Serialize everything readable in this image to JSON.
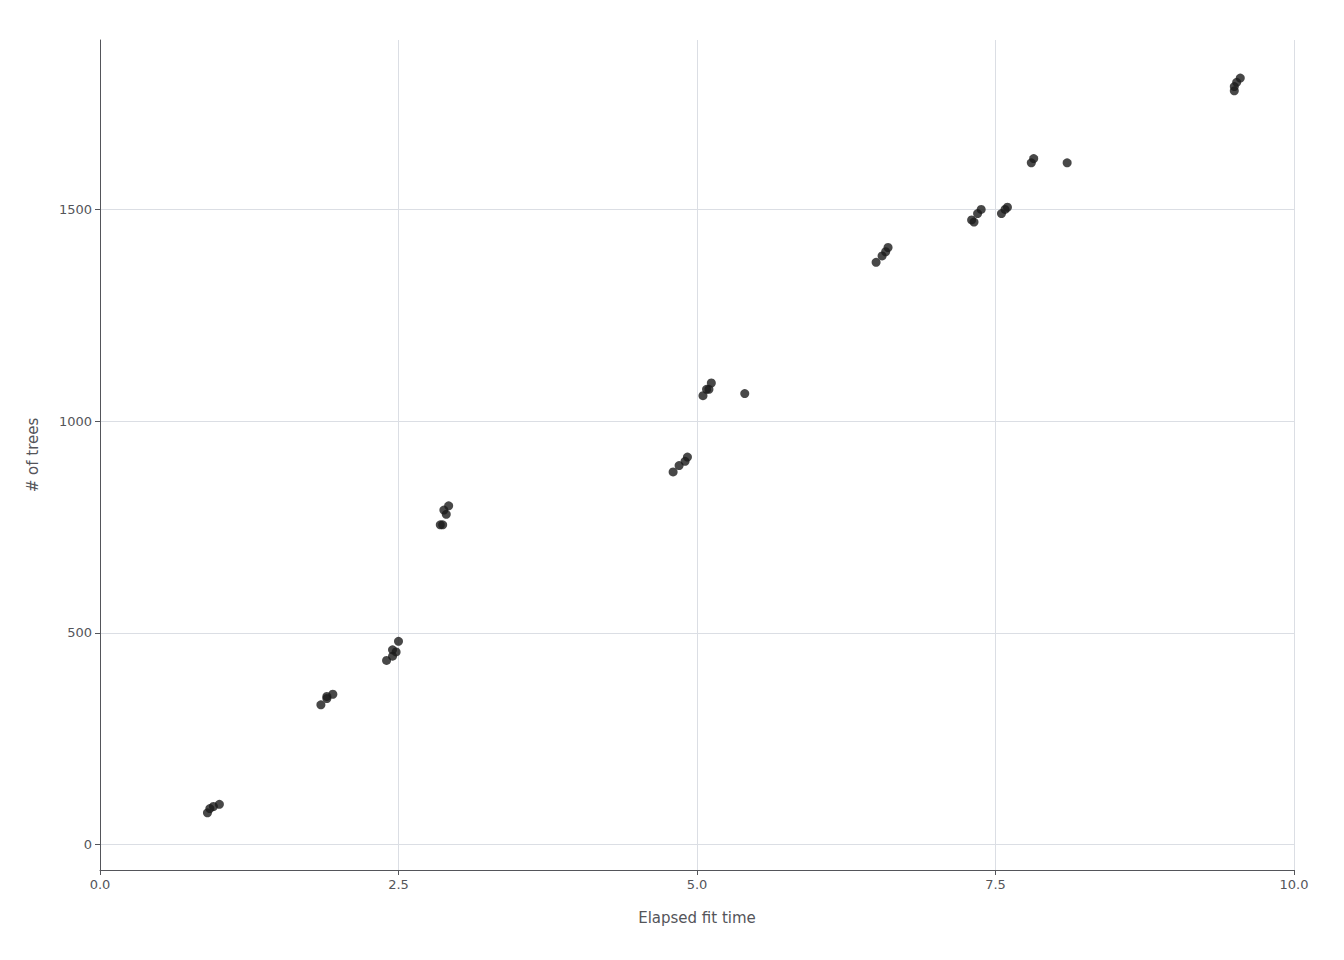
{
  "chart_data": {
    "type": "scatter",
    "x": [
      0.9,
      0.95,
      0.92,
      1.0,
      1.85,
      1.9,
      1.95,
      1.9,
      2.4,
      2.45,
      2.5,
      2.48,
      2.45,
      2.85,
      2.9,
      2.88,
      2.92,
      2.87,
      4.8,
      4.85,
      4.9,
      4.92,
      5.05,
      5.1,
      5.12,
      5.08,
      5.4,
      6.5,
      6.55,
      6.6,
      6.58,
      7.3,
      7.35,
      7.38,
      7.32,
      7.55,
      7.58,
      7.6,
      7.8,
      7.82,
      8.1,
      9.5,
      9.52,
      9.55,
      9.5
    ],
    "values": [
      75,
      90,
      85,
      95,
      330,
      345,
      355,
      350,
      435,
      460,
      480,
      455,
      445,
      755,
      780,
      790,
      800,
      755,
      880,
      895,
      905,
      915,
      1060,
      1075,
      1090,
      1075,
      1065,
      1375,
      1390,
      1410,
      1400,
      1475,
      1490,
      1500,
      1470,
      1490,
      1500,
      1505,
      1610,
      1620,
      1610,
      1790,
      1800,
      1810,
      1780
    ],
    "color": "#1a1a1a",
    "xlabel": "Elapsed fit time",
    "ylabel": "# of trees",
    "xlim": [
      0.0,
      10.0
    ],
    "ylim": [
      -60,
      1900
    ],
    "xticks": [
      {
        "value": 0,
        "label": "0.0"
      },
      2.5,
      {
        "value": 5,
        "label": "5.0"
      },
      7.5,
      {
        "value": 10,
        "label": "10.0"
      }
    ],
    "yticks": [
      0,
      500,
      1000,
      1500
    ],
    "grid": true
  }
}
